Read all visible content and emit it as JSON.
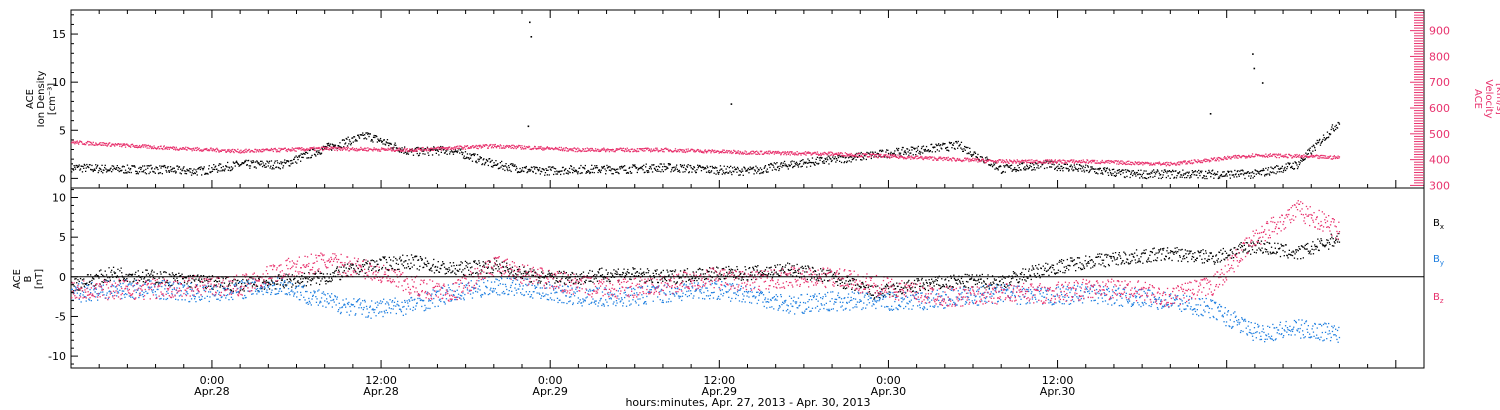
{
  "colors": {
    "black": "#000000",
    "red": "#e8336e",
    "blue": "#1f7fe0"
  },
  "chart_data": [
    {
      "type": "scatter",
      "panel": "top",
      "ylabel_left": [
        "ACE",
        "Ion Density",
        "[cm⁻³]"
      ],
      "ylabel_right": [
        "ACE",
        "Velocity",
        "[km/s]"
      ],
      "ylim": [
        -1,
        17.5
      ],
      "yticks": [
        0,
        5,
        10,
        15
      ],
      "y2lim": [
        290,
        980
      ],
      "y2ticks": [
        300,
        400,
        500,
        600,
        700,
        800,
        900
      ],
      "series": [
        {
          "color": "black",
          "axis": "left",
          "hours": [
            0,
            3,
            6,
            9,
            12,
            15,
            18,
            21,
            24,
            27,
            30,
            33,
            36,
            39,
            42,
            45,
            48,
            51,
            54,
            57,
            60,
            63,
            66,
            69,
            72,
            75,
            78,
            81,
            84,
            87,
            90
          ],
          "values": [
            1.2,
            1.0,
            1.0,
            0.8,
            1.5,
            1.5,
            3.2,
            4.5,
            2.8,
            3.0,
            1.5,
            0.8,
            1.0,
            1.0,
            1.2,
            1.0,
            0.8,
            1.5,
            2.0,
            2.5,
            3.0,
            3.5,
            1.0,
            1.5,
            1.0,
            0.5,
            0.5,
            0.5,
            0.5,
            1.5,
            6.0
          ],
          "spikes": [
            [
              32.5,
              16.3
            ],
            [
              32.6,
              14.8
            ],
            [
              32.4,
              5.5
            ],
            [
              46.8,
              7.8
            ],
            [
              83.8,
              13.0
            ],
            [
              83.9,
              11.5
            ],
            [
              84.5,
              10.0
            ],
            [
              80.8,
              6.8
            ]
          ]
        },
        {
          "name": "Velocity",
          "color": "red",
          "axis": "right",
          "hours": [
            0,
            6,
            12,
            18,
            24,
            30,
            36,
            42,
            48,
            54,
            60,
            66,
            72,
            78,
            84,
            90
          ],
          "values": [
            470,
            450,
            435,
            445,
            440,
            455,
            440,
            440,
            430,
            425,
            410,
            395,
            395,
            385,
            420,
            410
          ]
        }
      ]
    },
    {
      "type": "scatter",
      "panel": "bottom",
      "ylabel": [
        "ACE",
        "B",
        "[nT]"
      ],
      "ylim": [
        -11.5,
        11.2
      ],
      "yticks": [
        -10,
        -5,
        0,
        5,
        10
      ],
      "series": [
        {
          "name": "Bx",
          "color": "black",
          "hours": [
            0,
            3,
            6,
            9,
            12,
            15,
            18,
            21,
            24,
            27,
            30,
            33,
            36,
            39,
            42,
            45,
            48,
            51,
            54,
            57,
            60,
            63,
            66,
            69,
            72,
            75,
            78,
            81,
            84,
            87,
            90
          ],
          "values": [
            -1.0,
            0.5,
            0.0,
            -0.5,
            -1.0,
            -0.5,
            0.0,
            1.5,
            2.0,
            1.0,
            1.5,
            0.0,
            0.0,
            0.5,
            0.0,
            0.5,
            0.5,
            1.0,
            0.0,
            -2.0,
            -1.0,
            -0.5,
            -0.5,
            1.0,
            2.0,
            2.5,
            3.0,
            2.5,
            4.0,
            3.0,
            5.0
          ]
        },
        {
          "name": "By",
          "color": "blue",
          "hours": [
            0,
            3,
            6,
            9,
            12,
            15,
            18,
            21,
            24,
            27,
            30,
            33,
            36,
            39,
            42,
            45,
            48,
            51,
            54,
            57,
            60,
            63,
            66,
            69,
            72,
            75,
            78,
            81,
            84,
            87,
            90
          ],
          "values": [
            -2.0,
            -1.5,
            -1.5,
            -2.0,
            -1.5,
            -1.0,
            -3.0,
            -4.0,
            -3.5,
            -2.0,
            -1.0,
            -1.5,
            -2.5,
            -2.5,
            -2.0,
            -1.5,
            -2.0,
            -3.5,
            -3.0,
            -3.0,
            -3.0,
            -2.5,
            -2.0,
            -2.5,
            -2.0,
            -2.5,
            -3.0,
            -4.0,
            -7.0,
            -6.5,
            -7.0
          ]
        },
        {
          "name": "Bz",
          "color": "red",
          "hours": [
            0,
            3,
            6,
            9,
            12,
            15,
            18,
            21,
            24,
            27,
            30,
            33,
            36,
            39,
            42,
            45,
            48,
            51,
            54,
            57,
            60,
            63,
            66,
            69,
            72,
            75,
            78,
            81,
            84,
            87,
            90
          ],
          "values": [
            -1.5,
            -1.5,
            -1.5,
            -1.0,
            -1.0,
            1.0,
            2.0,
            1.0,
            -1.0,
            -2.0,
            1.5,
            0.0,
            -1.0,
            -1.5,
            -1.0,
            0.0,
            -0.5,
            0.0,
            0.0,
            -1.0,
            -2.0,
            -2.5,
            -2.0,
            -2.0,
            -1.5,
            -1.5,
            -2.5,
            -1.0,
            5.0,
            8.5,
            6.0
          ]
        }
      ],
      "zero_line": true
    }
  ],
  "x_axis": {
    "range_hours": [
      0,
      96
    ],
    "major_ticks": [
      {
        "hour": 10,
        "time": "0:00",
        "date": "Apr.28"
      },
      {
        "hour": 22,
        "time": "12:00",
        "date": "Apr.28"
      },
      {
        "hour": 34,
        "time": "0:00",
        "date": "Apr.29"
      },
      {
        "hour": 46,
        "time": "12:00",
        "date": "Apr.29"
      },
      {
        "hour": 58,
        "time": "0:00",
        "date": "Apr.30"
      },
      {
        "hour": 70,
        "time": "12:00",
        "date": "Apr.30"
      }
    ],
    "title": "hours:minutes, Apr. 27, 2013 - Apr. 30, 2013"
  },
  "legend": [
    {
      "label": "B",
      "sub": "x",
      "color": "black"
    },
    {
      "label": "B",
      "sub": "y",
      "color": "blue"
    },
    {
      "label": "B",
      "sub": "z",
      "color": "red"
    }
  ]
}
